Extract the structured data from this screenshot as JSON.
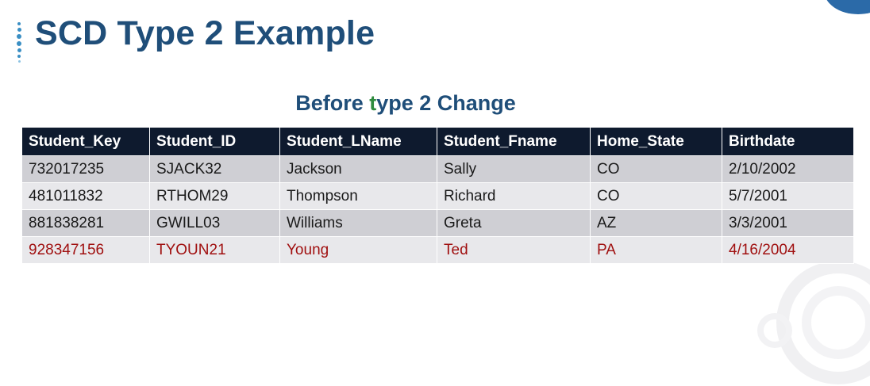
{
  "title": "SCD Type 2 Example",
  "subtitle": {
    "before": "Before ",
    "highlight": "t",
    "after": "ype 2 Change"
  },
  "colors": {
    "title": "#1f4e79",
    "header_bg": "#0e1a2e",
    "highlight_letter": "#2e8b3e",
    "new_row_text": "#a01010"
  },
  "table": {
    "columns": [
      "Student_Key",
      "Student_ID",
      "Student_LName",
      "Student_Fname",
      "Home_State",
      "Birthdate"
    ],
    "rows": [
      {
        "cells": [
          "732017235",
          "SJACK32",
          "Jackson",
          "Sally",
          "CO",
          "2/10/2002"
        ],
        "highlight": false
      },
      {
        "cells": [
          "481011832",
          "RTHOM29",
          "Thompson",
          "Richard",
          "CO",
          "5/7/2001"
        ],
        "highlight": false
      },
      {
        "cells": [
          "881838281",
          "GWILL03",
          "Williams",
          "Greta",
          "AZ",
          "3/3/2001"
        ],
        "highlight": false
      },
      {
        "cells": [
          "928347156",
          "TYOUN21",
          "Young",
          "Ted",
          "PA",
          "4/16/2004"
        ],
        "highlight": true
      }
    ]
  }
}
